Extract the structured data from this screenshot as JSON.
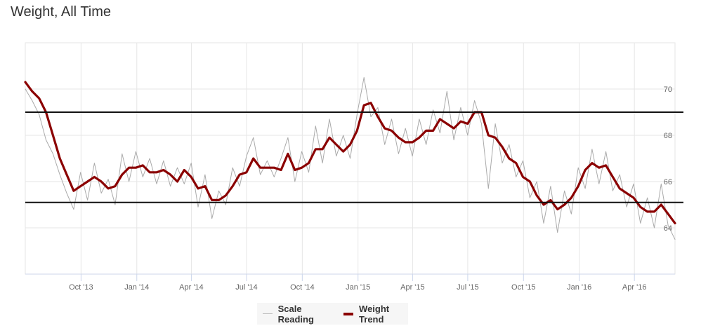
{
  "chart_data": {
    "type": "line",
    "title": "Weight, All Time",
    "xlabel": "",
    "ylabel": "",
    "x_range": [
      "2013-07-01",
      "2016-06-07"
    ],
    "ylim": [
      62,
      72
    ],
    "yticks": [
      64,
      66,
      68,
      70
    ],
    "xticks": [
      {
        "label": "Oct '13",
        "date": "2013-10-01"
      },
      {
        "label": "Jan '14",
        "date": "2014-01-01"
      },
      {
        "label": "Apr '14",
        "date": "2014-04-01"
      },
      {
        "label": "Jul '14",
        "date": "2014-07-01"
      },
      {
        "label": "Oct '14",
        "date": "2014-10-01"
      },
      {
        "label": "Jan '15",
        "date": "2015-01-01"
      },
      {
        "label": "Apr '15",
        "date": "2015-04-01"
      },
      {
        "label": "Jul '15",
        "date": "2015-07-01"
      },
      {
        "label": "Oct '15",
        "date": "2015-10-01"
      },
      {
        "label": "Jan '16",
        "date": "2016-01-01"
      },
      {
        "label": "Apr '16",
        "date": "2016-04-01"
      }
    ],
    "grid": true,
    "reference_lines": [
      69.0,
      65.1
    ],
    "legend_position": "bottom-center",
    "series": [
      {
        "name": "Scale Reading",
        "color": "#aaaaaa",
        "sampling": "evenly spaced over x_range",
        "values": [
          70.0,
          69.5,
          68.9,
          67.8,
          67.2,
          66.3,
          65.5,
          64.8,
          66.4,
          65.2,
          66.8,
          65.5,
          66.1,
          65.0,
          67.2,
          66.0,
          67.3,
          66.2,
          67.0,
          65.9,
          66.9,
          65.8,
          66.6,
          65.9,
          66.8,
          64.9,
          66.3,
          64.4,
          65.6,
          65.0,
          66.6,
          65.8,
          67.1,
          67.9,
          66.3,
          66.9,
          66.2,
          67.0,
          67.9,
          66.0,
          67.3,
          66.4,
          68.4,
          66.8,
          68.7,
          67.1,
          68.0,
          67.0,
          68.9,
          70.5,
          68.8,
          69.2,
          67.6,
          68.7,
          67.2,
          68.3,
          67.1,
          68.7,
          67.6,
          69.1,
          68.1,
          69.9,
          67.8,
          69.2,
          68.0,
          69.5,
          68.5,
          65.7,
          68.5,
          66.8,
          67.6,
          66.2,
          66.9,
          65.3,
          66.0,
          64.2,
          65.8,
          63.8,
          65.6,
          64.6,
          66.6,
          65.7,
          67.4,
          65.9,
          67.3,
          65.6,
          66.3,
          64.9,
          65.9,
          64.2,
          65.3,
          64.0,
          65.9,
          64.1,
          63.5
        ]
      },
      {
        "name": "Weight Trend",
        "color": "#8b0000",
        "sampling": "evenly spaced over x_range",
        "values": [
          70.3,
          69.9,
          69.6,
          69.0,
          68.0,
          67.0,
          66.3,
          65.6,
          65.8,
          66.0,
          66.2,
          66.0,
          65.7,
          65.8,
          66.3,
          66.6,
          66.6,
          66.7,
          66.4,
          66.4,
          66.5,
          66.3,
          66.0,
          66.5,
          66.2,
          65.7,
          65.8,
          65.2,
          65.2,
          65.4,
          65.8,
          66.3,
          66.4,
          67.0,
          66.6,
          66.6,
          66.6,
          66.5,
          67.2,
          66.5,
          66.6,
          66.8,
          67.4,
          67.4,
          67.9,
          67.6,
          67.3,
          67.6,
          68.2,
          69.3,
          69.4,
          68.8,
          68.3,
          68.2,
          67.9,
          67.7,
          67.7,
          67.9,
          68.2,
          68.2,
          68.7,
          68.5,
          68.3,
          68.6,
          68.5,
          69.0,
          69.0,
          68.0,
          67.9,
          67.5,
          67.0,
          66.8,
          66.2,
          66.0,
          65.4,
          65.0,
          65.2,
          64.8,
          65.0,
          65.3,
          65.8,
          66.5,
          66.8,
          66.6,
          66.7,
          66.2,
          65.7,
          65.5,
          65.3,
          64.9,
          64.7,
          64.7,
          65.0,
          64.6,
          64.2
        ]
      }
    ]
  }
}
